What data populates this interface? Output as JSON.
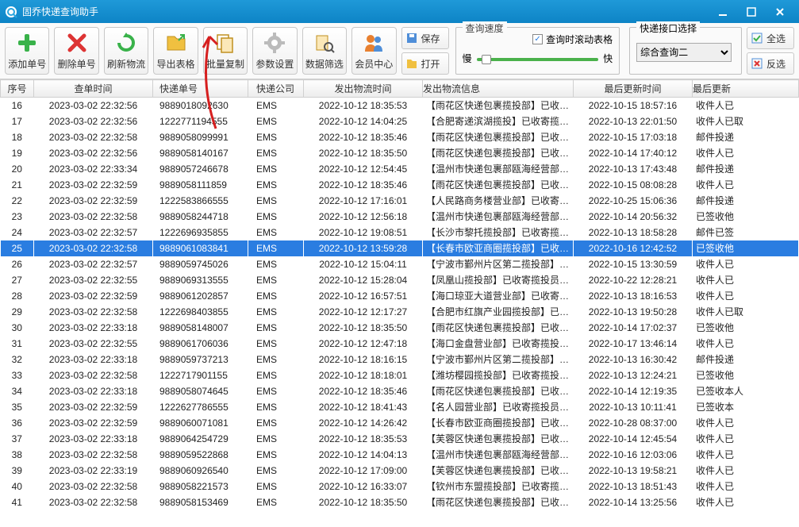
{
  "app": {
    "title": "固乔快递查询助手"
  },
  "toolbar": {
    "add": "添加单号",
    "del": "删除单号",
    "refresh": "刷新物流",
    "export": "导出表格",
    "copy": "批量复制",
    "settings": "参数设置",
    "filter": "数据筛选",
    "member": "会员中心",
    "save": "保存",
    "open": "打开",
    "selectAll": "全选",
    "selectInv": "反选"
  },
  "speed": {
    "group": "查询速度",
    "scrollCheck": "查询时滚动表格",
    "slow": "慢",
    "fast": "快"
  },
  "iface": {
    "group": "快递接口选择",
    "value": "综合查询二"
  },
  "columns": [
    "序号",
    "查单时间",
    "快递单号",
    "快递公司",
    "发出物流时间",
    "发出物流信息",
    "最后更新时间",
    "最后更新"
  ],
  "colors": {
    "titlebar_start": "#1f99d8",
    "titlebar_end": "#0d84c6",
    "selected_bg": "#2a7de1",
    "green": "#4ab14b",
    "red": "#d33",
    "orange": "#f0a030"
  },
  "selectedRowIndex": 9,
  "rows": [
    {
      "n": "16",
      "t": "2023-03-02 22:32:56",
      "no": "9889018092630",
      "c": "EMS",
      "st": "2022-10-12 18:35:53",
      "si": "【雨花区快递包裹揽投部】已收…",
      "ut": "2022-10-15 18:57:16",
      "ui": "收件人已"
    },
    {
      "n": "17",
      "t": "2023-03-02 22:32:56",
      "no": "1222771194555",
      "c": "EMS",
      "st": "2022-10-12 14:04:25",
      "si": "【合肥寄递滨湖揽投】已收寄揽…",
      "ut": "2022-10-13 22:01:50",
      "ui": "收件人已取"
    },
    {
      "n": "18",
      "t": "2023-03-02 22:32:58",
      "no": "9889058099991",
      "c": "EMS",
      "st": "2022-10-12 18:35:46",
      "si": "【雨花区快递包裹揽投部】已收…",
      "ut": "2022-10-15 17:03:18",
      "ui": "邮件投递"
    },
    {
      "n": "19",
      "t": "2023-03-02 22:32:56",
      "no": "9889058140167",
      "c": "EMS",
      "st": "2022-10-12 18:35:50",
      "si": "【雨花区快递包裹揽投部】已收…",
      "ut": "2022-10-14 17:40:12",
      "ui": "收件人已"
    },
    {
      "n": "20",
      "t": "2023-03-02 22:33:34",
      "no": "9889057246678",
      "c": "EMS",
      "st": "2022-10-12 12:54:45",
      "si": "【温州市快递包裹部瓯海经营部…",
      "ut": "2022-10-13 17:43:48",
      "ui": "邮件投递"
    },
    {
      "n": "21",
      "t": "2023-03-02 22:32:59",
      "no": "9889058111859",
      "c": "EMS",
      "st": "2022-10-12 18:35:46",
      "si": "【雨花区快递包裹揽投部】已收…",
      "ut": "2022-10-15 08:08:28",
      "ui": "收件人已"
    },
    {
      "n": "22",
      "t": "2023-03-02 22:32:59",
      "no": "1222583866555",
      "c": "EMS",
      "st": "2022-10-12 17:16:01",
      "si": "【人民路商务楼营业部】已收寄…",
      "ut": "2022-10-25 15:06:36",
      "ui": "邮件投递"
    },
    {
      "n": "23",
      "t": "2023-03-02 22:32:58",
      "no": "9889058244718",
      "c": "EMS",
      "st": "2022-10-12 12:56:18",
      "si": "【温州市快递包裹部瓯海经营部…",
      "ut": "2022-10-14 20:56:32",
      "ui": "已签收他"
    },
    {
      "n": "24",
      "t": "2023-03-02 22:32:57",
      "no": "1222696935855",
      "c": "EMS",
      "st": "2022-10-12 19:08:51",
      "si": "【长沙市黎托揽投部】已收寄揽…",
      "ut": "2022-10-13 18:58:28",
      "ui": "邮件已签"
    },
    {
      "n": "25",
      "t": "2023-03-02 22:32:58",
      "no": "9889061083841",
      "c": "EMS",
      "st": "2022-10-12 13:59:28",
      "si": "【长春市欧亚商圈揽投部】已收…",
      "ut": "2022-10-16 12:42:52",
      "ui": "已签收他"
    },
    {
      "n": "26",
      "t": "2023-03-02 22:32:57",
      "no": "9889059745026",
      "c": "EMS",
      "st": "2022-10-12 15:04:11",
      "si": "【宁波市鄞州片区第二揽投部】…",
      "ut": "2022-10-15 13:30:59",
      "ui": "收件人已"
    },
    {
      "n": "27",
      "t": "2023-03-02 22:32:55",
      "no": "9889069313555",
      "c": "EMS",
      "st": "2022-10-12 15:28:04",
      "si": "【凤凰山揽投部】已收寄揽投员…",
      "ut": "2022-10-22 12:28:21",
      "ui": "收件人已"
    },
    {
      "n": "28",
      "t": "2023-03-02 22:32:59",
      "no": "9889061202857",
      "c": "EMS",
      "st": "2022-10-12 16:57:51",
      "si": "【海口琼亚大道营业部】已收寄…",
      "ut": "2022-10-13 18:16:53",
      "ui": "收件人已"
    },
    {
      "n": "29",
      "t": "2023-03-02 22:32:58",
      "no": "1222698403855",
      "c": "EMS",
      "st": "2022-10-12 12:17:27",
      "si": "【合肥市红旗产业园揽投部】已…",
      "ut": "2022-10-13 19:50:28",
      "ui": "收件人已取"
    },
    {
      "n": "30",
      "t": "2023-03-02 22:33:18",
      "no": "9889058148007",
      "c": "EMS",
      "st": "2022-10-12 18:35:50",
      "si": "【雨花区快递包裹揽投部】已收…",
      "ut": "2022-10-14 17:02:37",
      "ui": "已签收他"
    },
    {
      "n": "31",
      "t": "2023-03-02 22:32:55",
      "no": "9889061706036",
      "c": "EMS",
      "st": "2022-10-12 12:47:18",
      "si": "【海口金盘营业部】已收寄揽投…",
      "ut": "2022-10-17 13:46:14",
      "ui": "收件人已"
    },
    {
      "n": "32",
      "t": "2023-03-02 22:33:18",
      "no": "9889059737213",
      "c": "EMS",
      "st": "2022-10-12 18:16:15",
      "si": "【宁波市鄞州片区第二揽投部】…",
      "ut": "2022-10-13 16:30:42",
      "ui": "邮件投递"
    },
    {
      "n": "33",
      "t": "2023-03-02 22:32:58",
      "no": "1222717901155",
      "c": "EMS",
      "st": "2022-10-12 18:18:01",
      "si": "【潍坊樱园揽投部】已收寄揽投…",
      "ut": "2022-10-13 12:24:21",
      "ui": "已签收他"
    },
    {
      "n": "34",
      "t": "2023-03-02 22:33:18",
      "no": "9889058074645",
      "c": "EMS",
      "st": "2022-10-12 18:35:46",
      "si": "【雨花区快递包裹揽投部】已收…",
      "ut": "2022-10-14 12:19:35",
      "ui": "已签收本人"
    },
    {
      "n": "35",
      "t": "2023-03-02 22:32:59",
      "no": "1222627786555",
      "c": "EMS",
      "st": "2022-10-12 18:41:43",
      "si": "【名人园营业部】已收寄揽投员…",
      "ut": "2022-10-13 10:11:41",
      "ui": "已签收本"
    },
    {
      "n": "36",
      "t": "2023-03-02 22:32:59",
      "no": "9889060071081",
      "c": "EMS",
      "st": "2022-10-12 14:26:42",
      "si": "【长春市欧亚商圈揽投部】已收…",
      "ut": "2022-10-28 08:37:00",
      "ui": "收件人已"
    },
    {
      "n": "37",
      "t": "2023-03-02 22:33:18",
      "no": "9889064254729",
      "c": "EMS",
      "st": "2022-10-12 18:35:53",
      "si": "【芙蓉区快递包裹揽投部】已收…",
      "ut": "2022-10-14 12:45:54",
      "ui": "收件人已"
    },
    {
      "n": "38",
      "t": "2023-03-02 22:32:58",
      "no": "9889059522868",
      "c": "EMS",
      "st": "2022-10-12 14:04:13",
      "si": "【温州市快递包裹部瓯海经营部…",
      "ut": "2022-10-16 12:03:06",
      "ui": "收件人已"
    },
    {
      "n": "39",
      "t": "2023-03-02 22:33:19",
      "no": "9889060926540",
      "c": "EMS",
      "st": "2022-10-12 17:09:00",
      "si": "【芙蓉区快递包裹揽投部】已收…",
      "ut": "2022-10-13 19:58:21",
      "ui": "收件人已"
    },
    {
      "n": "40",
      "t": "2023-03-02 22:32:58",
      "no": "9889058221573",
      "c": "EMS",
      "st": "2022-10-12 16:33:07",
      "si": "【钦州市东盟揽投部】已收寄揽…",
      "ut": "2022-10-13 18:51:43",
      "ui": "收件人已"
    },
    {
      "n": "41",
      "t": "2023-03-02 22:32:58",
      "no": "9889058153469",
      "c": "EMS",
      "st": "2022-10-12 18:35:50",
      "si": "【雨花区快递包裹揽投部】已收…",
      "ut": "2022-10-14 13:25:56",
      "ui": "收件人已"
    }
  ]
}
